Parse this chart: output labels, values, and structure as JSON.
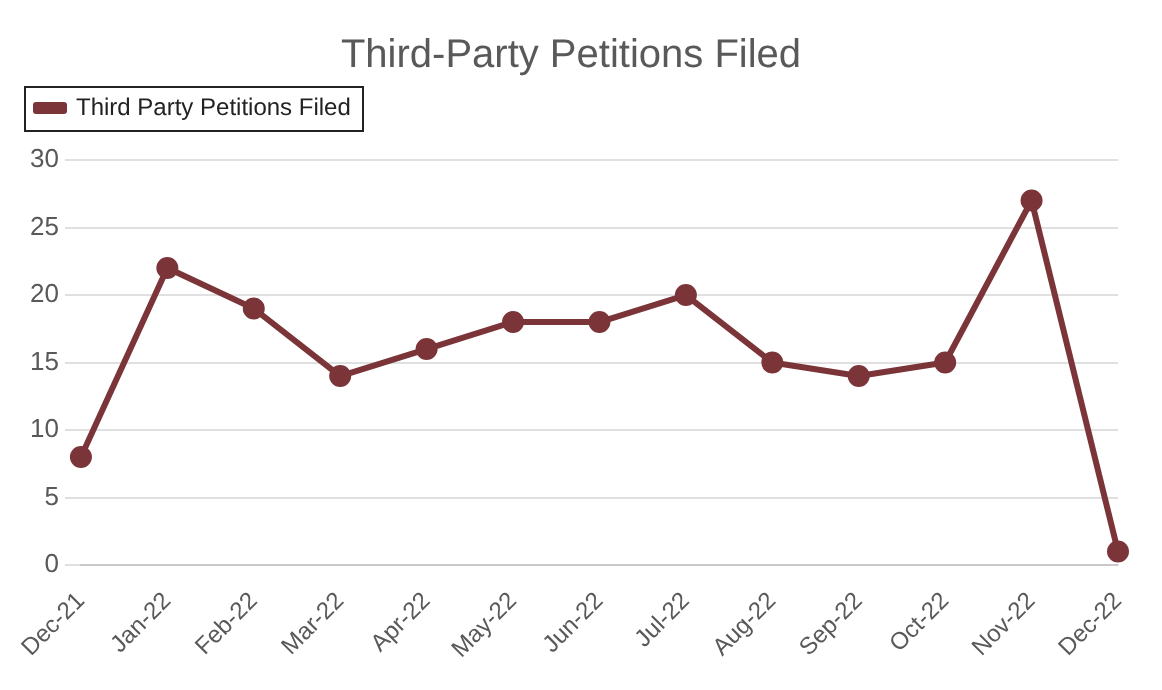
{
  "chart_data": {
    "type": "line",
    "title": "Third-Party Petitions Filed",
    "categories": [
      "Dec-21",
      "Jan-22",
      "Feb-22",
      "Mar-22",
      "Apr-22",
      "May-22",
      "Jun-22",
      "Jul-22",
      "Aug-22",
      "Sep-22",
      "Oct-22",
      "Nov-22",
      "Dec-22"
    ],
    "series": [
      {
        "name": "Third Party Petitions Filed",
        "color": "#7b3539",
        "values": [
          8,
          22,
          19,
          14,
          16,
          18,
          18,
          20,
          15,
          14,
          15,
          27,
          1
        ]
      }
    ],
    "ylim": [
      0,
      30
    ],
    "yticks": [
      0,
      5,
      10,
      15,
      20,
      25,
      30
    ],
    "grid": "y",
    "legend": "top left",
    "marker": "circle",
    "line_style": "solid"
  }
}
